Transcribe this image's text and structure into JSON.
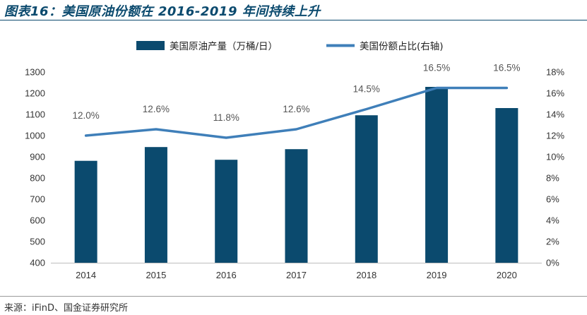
{
  "title": "图表16：美国原油份额在 2016-2019 年间持续上升",
  "source": "来源：iFinD、国金证券研究所",
  "colors": {
    "bar": "#0b4a6e",
    "line": "#3f7fb9",
    "title": "#0b4a6e"
  },
  "chart_data": {
    "type": "bar+line",
    "categories": [
      "2014",
      "2015",
      "2016",
      "2017",
      "2018",
      "2019",
      "2020"
    ],
    "series": [
      {
        "name": "美国原油产量（万桶/日）",
        "type": "bar",
        "axis": "left",
        "values": [
          881,
          946,
          886,
          936,
          1096,
          1230,
          1130
        ]
      },
      {
        "name": "美国份额占比(右轴)",
        "type": "line",
        "axis": "right",
        "values": [
          12.0,
          12.6,
          11.8,
          12.6,
          14.5,
          16.5,
          16.5
        ],
        "labels": [
          "12.0%",
          "12.6%",
          "11.8%",
          "12.6%",
          "14.5%",
          "16.5%",
          "16.5%"
        ]
      }
    ],
    "left_axis": {
      "min": 400,
      "max": 1300,
      "step": 100,
      "ticks": [
        "400",
        "500",
        "600",
        "700",
        "800",
        "900",
        "1000",
        "1100",
        "1200",
        "1300"
      ]
    },
    "right_axis": {
      "min": 0,
      "max": 18,
      "step": 2,
      "ticks": [
        "0%",
        "2%",
        "4%",
        "6%",
        "8%",
        "10%",
        "12%",
        "14%",
        "16%",
        "18%"
      ]
    },
    "legend_position": "top-center",
    "grid": false
  }
}
